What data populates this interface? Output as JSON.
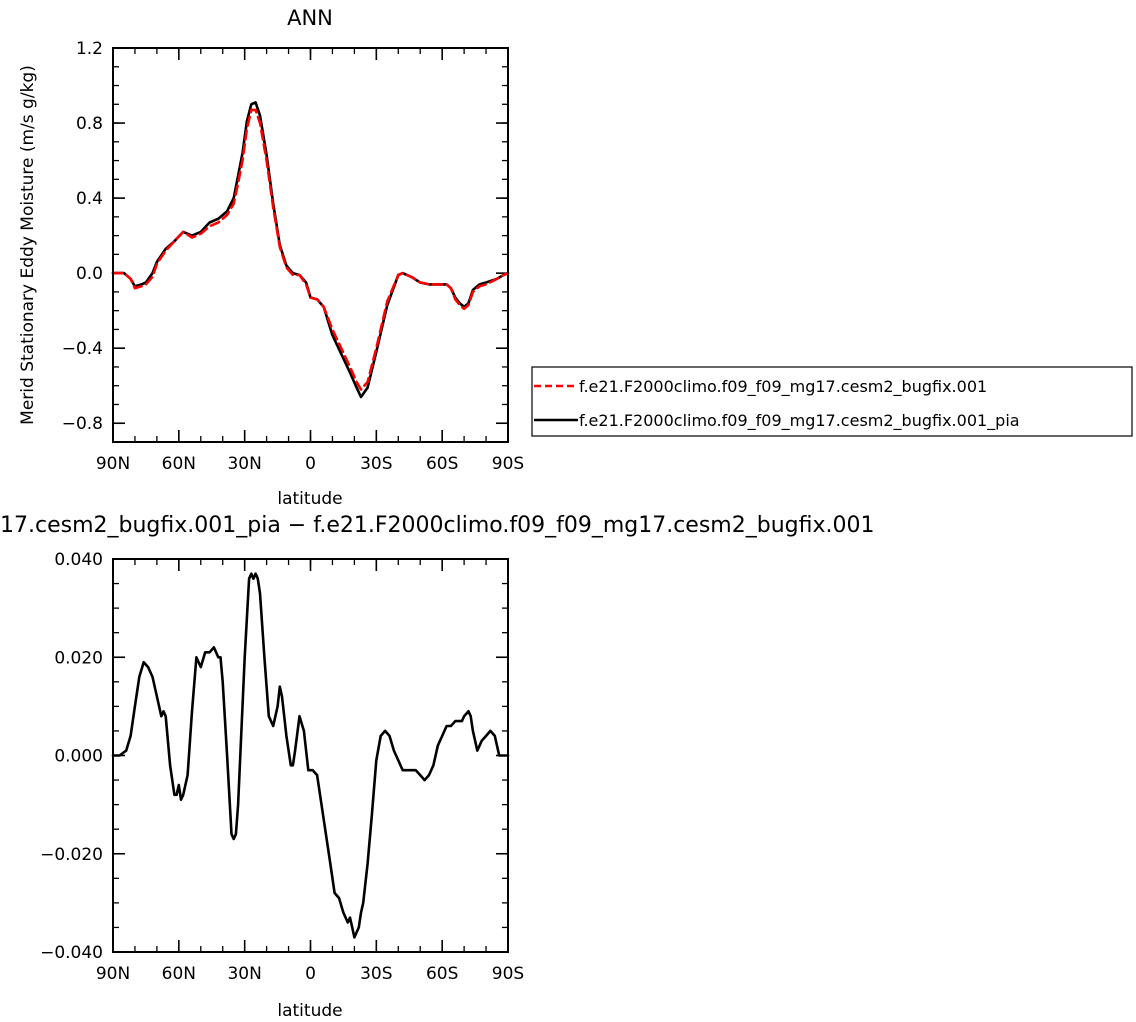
{
  "chart_data": [
    {
      "type": "line",
      "title": "ANN",
      "xlabel": "latitude",
      "ylabel": "Merid Stationary Eddy Moisture (m/s g/kg)",
      "x_ticks": [
        "90N",
        "60N",
        "30N",
        "0",
        "30S",
        "60S",
        "90S"
      ],
      "y_ticks": [
        "−0.8",
        "−0.4",
        "0.0",
        "0.4",
        "0.8",
        "1.2"
      ],
      "xlim": [
        90,
        -90
      ],
      "ylim": [
        -0.9,
        1.2
      ],
      "grid": false,
      "legend_position": "right",
      "series": [
        {
          "name": "f.e21.F2000climo.f09_f09_mg17.cesm2_bugfix.001",
          "color": "#ff0000",
          "dash": "dashed",
          "x": [
            90,
            85,
            82,
            80,
            77,
            75,
            72,
            70,
            66,
            62,
            58,
            54,
            50,
            46,
            42,
            38,
            35,
            33,
            31,
            29,
            27,
            25,
            23,
            20,
            17,
            14,
            11,
            8,
            5,
            2,
            0,
            -3,
            -6,
            -10,
            -14,
            -18,
            -21,
            -23,
            -26,
            -30,
            -35,
            -40,
            -42,
            -46,
            -50,
            -54,
            -58,
            -62,
            -64,
            -66,
            -68,
            -70,
            -72,
            -74,
            -77,
            -80,
            -85,
            -88,
            -90
          ],
          "values": [
            0.0,
            0.0,
            -0.03,
            -0.08,
            -0.07,
            -0.06,
            -0.02,
            0.05,
            0.12,
            0.17,
            0.22,
            0.19,
            0.21,
            0.25,
            0.27,
            0.31,
            0.37,
            0.48,
            0.6,
            0.77,
            0.87,
            0.87,
            0.8,
            0.6,
            0.35,
            0.14,
            0.03,
            -0.01,
            -0.01,
            -0.06,
            -0.13,
            -0.14,
            -0.18,
            -0.3,
            -0.4,
            -0.5,
            -0.58,
            -0.62,
            -0.58,
            -0.4,
            -0.15,
            -0.01,
            0.0,
            -0.02,
            -0.05,
            -0.06,
            -0.06,
            -0.06,
            -0.08,
            -0.14,
            -0.17,
            -0.19,
            -0.17,
            -0.1,
            -0.07,
            -0.06,
            -0.03,
            -0.01,
            0.0
          ]
        },
        {
          "name": "f.e21.F2000climo.f09_f09_mg17.cesm2_bugfix.001_pia",
          "color": "#000000",
          "dash": "solid",
          "x": [
            90,
            85,
            82,
            80,
            77,
            75,
            72,
            70,
            66,
            62,
            58,
            54,
            50,
            46,
            42,
            38,
            35,
            33,
            31,
            29,
            27,
            25,
            23,
            20,
            17,
            14,
            11,
            8,
            5,
            2,
            0,
            -3,
            -6,
            -10,
            -14,
            -18,
            -21,
            -23,
            -26,
            -30,
            -35,
            -40,
            -42,
            -46,
            -50,
            -54,
            -58,
            -62,
            -64,
            -66,
            -68,
            -70,
            -72,
            -74,
            -77,
            -80,
            -85,
            -88,
            -90
          ],
          "values": [
            0.0,
            0.0,
            -0.03,
            -0.07,
            -0.06,
            -0.05,
            0.0,
            0.06,
            0.13,
            0.17,
            0.22,
            0.2,
            0.22,
            0.27,
            0.29,
            0.33,
            0.4,
            0.52,
            0.64,
            0.81,
            0.9,
            0.91,
            0.84,
            0.63,
            0.37,
            0.15,
            0.04,
            0.0,
            -0.01,
            -0.05,
            -0.13,
            -0.14,
            -0.18,
            -0.33,
            -0.43,
            -0.53,
            -0.61,
            -0.66,
            -0.61,
            -0.42,
            -0.17,
            -0.01,
            0.0,
            -0.02,
            -0.05,
            -0.06,
            -0.06,
            -0.06,
            -0.08,
            -0.13,
            -0.16,
            -0.18,
            -0.16,
            -0.09,
            -0.06,
            -0.05,
            -0.03,
            -0.01,
            0.0
          ]
        }
      ]
    },
    {
      "type": "line",
      "title": "17.cesm2_bugfix.001_pia − f.e21.F2000climo.f09_f09_mg17.cesm2_bugfix.001",
      "xlabel": "latitude",
      "ylabel": "",
      "x_ticks": [
        "90N",
        "60N",
        "30N",
        "0",
        "30S",
        "60S",
        "90S"
      ],
      "y_ticks": [
        "−0.040",
        "−0.020",
        "0.000",
        "0.020",
        "0.040"
      ],
      "xlim": [
        90,
        -90
      ],
      "ylim": [
        -0.04,
        0.04
      ],
      "grid": false,
      "series": [
        {
          "color": "#000000",
          "dash": "solid",
          "x": [
            90,
            87,
            84,
            82,
            80,
            78,
            76,
            74,
            72,
            70,
            68,
            67,
            66,
            64,
            62,
            61,
            60,
            59,
            58,
            56,
            54,
            52,
            50,
            48,
            46,
            44,
            42,
            41,
            40,
            38,
            36,
            35,
            34,
            33,
            32,
            30,
            28,
            27,
            26,
            25,
            24,
            23,
            21,
            19,
            17,
            15,
            14,
            13,
            11,
            9,
            8,
            7,
            5,
            3,
            1,
            -1,
            -3,
            -5,
            -7,
            -9,
            -11,
            -13,
            -15,
            -17,
            -18,
            -19,
            -20,
            -21,
            -22,
            -23,
            -24,
            -26,
            -28,
            -30,
            -32,
            -34,
            -36,
            -38,
            -40,
            -42,
            -44,
            -46,
            -48,
            -50,
            -52,
            -54,
            -56,
            -58,
            -60,
            -62,
            -64,
            -66,
            -68,
            -69,
            -70,
            -72,
            -73,
            -74,
            -76,
            -78,
            -80,
            -82,
            -84,
            -86,
            -88,
            -90
          ],
          "values": [
            0.0,
            0.0,
            0.001,
            0.004,
            0.01,
            0.016,
            0.019,
            0.018,
            0.016,
            0.012,
            0.008,
            0.009,
            0.008,
            -0.002,
            -0.008,
            -0.008,
            -0.006,
            -0.009,
            -0.008,
            -0.004,
            0.009,
            0.02,
            0.018,
            0.021,
            0.021,
            0.022,
            0.02,
            0.02,
            0.015,
            0.0,
            -0.016,
            -0.017,
            -0.016,
            -0.01,
            0.0,
            0.02,
            0.036,
            0.037,
            0.036,
            0.037,
            0.036,
            0.033,
            0.02,
            0.008,
            0.006,
            0.01,
            0.014,
            0.012,
            0.004,
            -0.002,
            -0.002,
            0.001,
            0.008,
            0.005,
            -0.003,
            -0.003,
            -0.004,
            -0.01,
            -0.016,
            -0.022,
            -0.028,
            -0.029,
            -0.032,
            -0.034,
            -0.033,
            -0.035,
            -0.037,
            -0.036,
            -0.035,
            -0.032,
            -0.03,
            -0.022,
            -0.012,
            -0.001,
            0.004,
            0.005,
            0.004,
            0.001,
            -0.001,
            -0.003,
            -0.003,
            -0.003,
            -0.003,
            -0.004,
            -0.005,
            -0.004,
            -0.002,
            0.002,
            0.004,
            0.006,
            0.006,
            0.007,
            0.007,
            0.007,
            0.008,
            0.009,
            0.008,
            0.005,
            0.001,
            0.003,
            0.004,
            0.005,
            0.004,
            0.0,
            0.0,
            0.0
          ]
        }
      ]
    }
  ]
}
